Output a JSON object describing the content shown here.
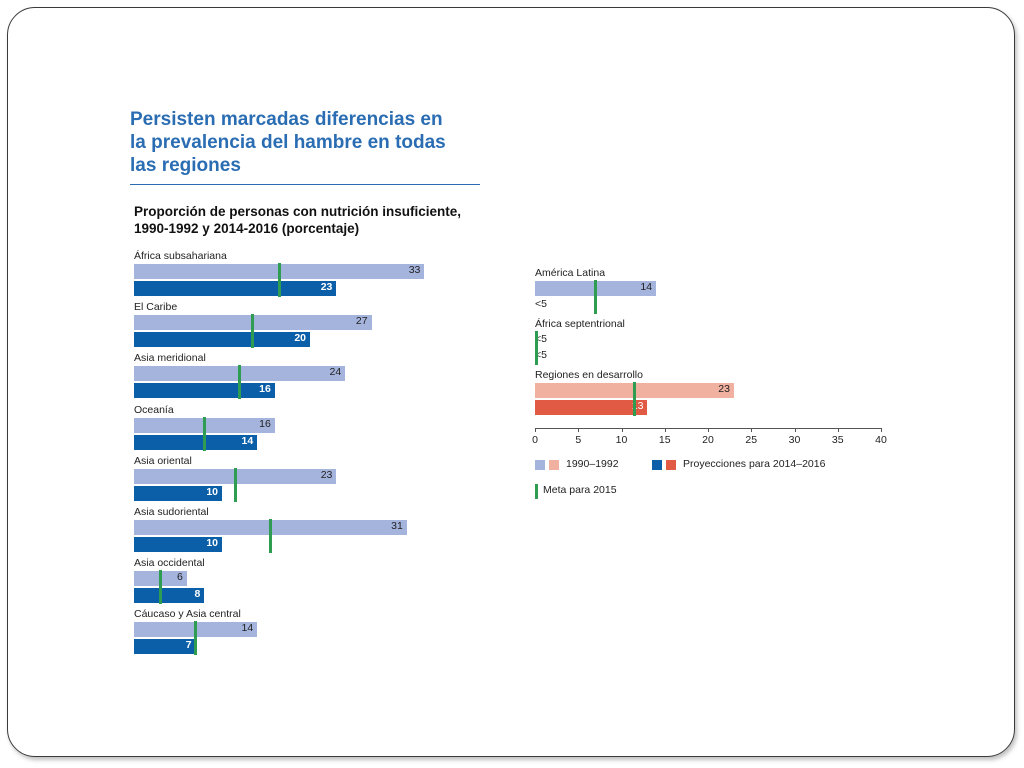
{
  "slide": {
    "title": "Persisten marcadas diferencias en la prevalencia del hambre en todas las regiones"
  },
  "chart_data": {
    "type": "bar",
    "title": "Proporción de personas con nutrición insuficiente, 1990-1992 y 2014-2016 (porcentaje)",
    "x_ticks": [
      "0",
      "5",
      "10",
      "15",
      "20",
      "25",
      "30",
      "35",
      "40"
    ],
    "xlim": [
      0,
      40
    ],
    "series": [
      {
        "name": "1990–1992"
      },
      {
        "name": "Proyecciones para 2014–2016"
      },
      {
        "name": "Meta para 2015"
      }
    ],
    "colors": {
      "s1990": "#a5b4dc",
      "s2014": "#0b5fa8",
      "dev1990": "#f1b1a0",
      "dev2014": "#e05a44",
      "target": "#2e9d52"
    },
    "legend": {
      "label_1990": "1990–1992",
      "label_2014": "Proyecciones para 2014–2016",
      "label_target": "Meta para 2015"
    },
    "left_panel": [
      {
        "region": "África subsahariana",
        "v1990": 33,
        "v2014": 23,
        "target": 16.5,
        "l1990": "33",
        "l2014": "23"
      },
      {
        "region": "El Caribe",
        "v1990": 27,
        "v2014": 20,
        "target": 13.5,
        "l1990": "27",
        "l2014": "20"
      },
      {
        "region": "Asia meridional",
        "v1990": 24,
        "v2014": 16,
        "target": 12,
        "l1990": "24",
        "l2014": "16"
      },
      {
        "region": "Oceanía",
        "v1990": 16,
        "v2014": 14,
        "target": 8,
        "l1990": "16",
        "l2014": "14"
      },
      {
        "region": "Asia oriental",
        "v1990": 23,
        "v2014": 10,
        "target": 11.5,
        "l1990": "23",
        "l2014": "10"
      },
      {
        "region": "Asia sudoriental",
        "v1990": 31,
        "v2014": 10,
        "target": 15.5,
        "l1990": "31",
        "l2014": "10"
      },
      {
        "region": "Asia occidental",
        "v1990": 6,
        "v2014": 8,
        "target": 3,
        "l1990": "6",
        "l2014": "8"
      },
      {
        "region": "Cáucaso y Asia central",
        "v1990": 14,
        "v2014": 7,
        "target": 7,
        "l1990": "14",
        "l2014": "7"
      }
    ],
    "right_panel": [
      {
        "region": "América Latina",
        "v1990": 14,
        "v2014": 0,
        "target": 7,
        "l1990": "14",
        "l2014": "<5"
      },
      {
        "region": "África septentrional",
        "v1990": 0,
        "v2014": 0,
        "target": 0,
        "l1990": "<5",
        "l2014": "<5"
      },
      {
        "region": "Regiones en desarrollo",
        "v1990": 23,
        "v2014": 13,
        "target": 11.5,
        "l1990": "23",
        "l2014": "13",
        "developing": true
      }
    ]
  }
}
